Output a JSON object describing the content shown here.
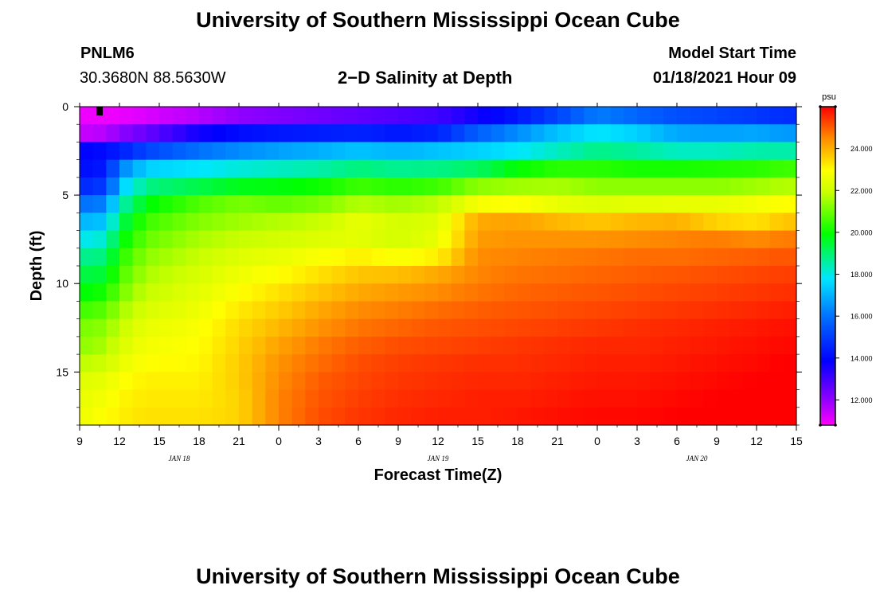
{
  "page": {
    "title_top": "University of Southern Mississippi Ocean Cube",
    "title_bottom": "University of Southern Mississippi Ocean Cube",
    "station_id": "PNLM6",
    "station_coords": "30.3680N 88.5630W",
    "chart_title": "2−D Salinity at Depth",
    "model_start_label": "Model Start Time",
    "model_start_value": "01/18/2021 Hour 09"
  },
  "colors": {
    "palette": [
      "#ff00ff",
      "#8c00ff",
      "#0000ff",
      "#00e6ff",
      "#00ff00",
      "#ffff00",
      "#ff8c00",
      "#ff0000"
    ],
    "marker": "#000000",
    "axis": "#000000"
  },
  "chart_data": {
    "type": "heatmap",
    "title": "2−D Salinity at Depth",
    "xlabel": "Forecast Time(Z)",
    "ylabel": "Depth (ft)",
    "x_range_hours": [
      0,
      54
    ],
    "x_ticks": [
      {
        "hour": 0,
        "label": "9"
      },
      {
        "hour": 3,
        "label": "12"
      },
      {
        "hour": 6,
        "label": "15"
      },
      {
        "hour": 9,
        "label": "18"
      },
      {
        "hour": 12,
        "label": "21"
      },
      {
        "hour": 15,
        "label": "0"
      },
      {
        "hour": 18,
        "label": "3"
      },
      {
        "hour": 21,
        "label": "6"
      },
      {
        "hour": 24,
        "label": "9"
      },
      {
        "hour": 27,
        "label": "12"
      },
      {
        "hour": 30,
        "label": "15"
      },
      {
        "hour": 33,
        "label": "18"
      },
      {
        "hour": 36,
        "label": "21"
      },
      {
        "hour": 39,
        "label": "0"
      },
      {
        "hour": 42,
        "label": "3"
      },
      {
        "hour": 45,
        "label": "6"
      },
      {
        "hour": 48,
        "label": "9"
      },
      {
        "hour": 51,
        "label": "12"
      },
      {
        "hour": 54,
        "label": "15"
      }
    ],
    "date_labels": [
      {
        "hour": 7.5,
        "label": "JAN 18"
      },
      {
        "hour": 27,
        "label": "JAN 19"
      },
      {
        "hour": 46.5,
        "label": "JAN 20"
      }
    ],
    "y_range_ft": [
      0,
      18
    ],
    "y_ticks": [
      {
        "depth": 0,
        "label": "0"
      },
      {
        "depth": 5,
        "label": "5"
      },
      {
        "depth": 10,
        "label": "10"
      },
      {
        "depth": 15,
        "label": "15"
      }
    ],
    "depth_levels": 18,
    "time_steps": 54,
    "colorbar": {
      "unit": "psu",
      "range": [
        10.8,
        26.0
      ],
      "ticks": [
        {
          "value": 12,
          "label": "12.000"
        },
        {
          "value": 14,
          "label": "14.000"
        },
        {
          "value": 16,
          "label": "16.000"
        },
        {
          "value": 18,
          "label": "18.000"
        },
        {
          "value": 20,
          "label": "20.000"
        },
        {
          "value": 22,
          "label": "22.000"
        },
        {
          "value": 24,
          "label": "24.000"
        }
      ]
    },
    "salinity_profiles_psu": [
      {
        "hour": 0,
        "values": [
          11.0,
          11.4,
          13.8,
          14.0,
          14.5,
          15.8,
          16.8,
          17.6,
          18.4,
          19.0,
          19.5,
          20.2,
          20.8,
          21.0,
          21.5,
          22.0,
          22.2,
          22.3
        ]
      },
      {
        "hour": 2,
        "values": [
          11.0,
          11.6,
          14.0,
          14.2,
          14.8,
          16.0,
          17.0,
          17.9,
          18.6,
          19.2,
          19.8,
          20.5,
          21.0,
          21.3,
          21.7,
          22.2,
          22.4,
          22.6
        ]
      },
      {
        "hour": 3,
        "values": [
          11.0,
          12.0,
          14.3,
          16.0,
          17.0,
          18.0,
          18.8,
          19.4,
          19.9,
          20.3,
          20.7,
          21.2,
          21.6,
          21.9,
          22.2,
          22.5,
          22.7,
          22.8
        ]
      },
      {
        "hour": 5,
        "values": [
          11.2,
          12.5,
          15.0,
          17.2,
          18.5,
          19.5,
          20.2,
          20.6,
          21.0,
          21.3,
          21.6,
          21.9,
          22.2,
          22.4,
          22.6,
          22.8,
          22.9,
          23.0
        ]
      },
      {
        "hour": 9,
        "values": [
          11.6,
          13.6,
          15.8,
          17.5,
          19.0,
          20.4,
          20.9,
          21.3,
          21.6,
          21.9,
          22.1,
          22.3,
          22.5,
          22.6,
          22.7,
          22.8,
          22.9,
          23.0
        ]
      },
      {
        "hour": 12,
        "values": [
          12.0,
          14.0,
          16.2,
          17.8,
          19.4,
          20.8,
          21.2,
          21.6,
          22.0,
          22.3,
          22.6,
          22.9,
          23.1,
          23.2,
          23.3,
          23.3,
          23.2,
          23.2
        ]
      },
      {
        "hour": 15,
        "values": [
          12.2,
          14.2,
          16.5,
          18.0,
          19.5,
          20.6,
          21.4,
          21.8,
          22.2,
          22.6,
          23.0,
          23.3,
          23.6,
          23.9,
          24.1,
          24.2,
          24.3,
          24.3
        ]
      },
      {
        "hour": 18,
        "values": [
          12.4,
          14.3,
          16.7,
          18.2,
          19.7,
          20.8,
          21.6,
          22.0,
          22.5,
          23.0,
          23.4,
          23.8,
          24.1,
          24.4,
          24.6,
          24.8,
          24.9,
          25.0
        ]
      },
      {
        "hour": 21,
        "values": [
          12.6,
          14.4,
          17.0,
          18.6,
          20.2,
          21.4,
          22.2,
          22.1,
          22.8,
          23.4,
          23.8,
          24.2,
          24.5,
          24.8,
          25.0,
          25.1,
          25.2,
          25.3
        ]
      },
      {
        "hour": 24,
        "values": [
          12.8,
          14.2,
          16.8,
          18.4,
          20.0,
          21.2,
          21.8,
          21.8,
          22.5,
          23.5,
          24.0,
          24.4,
          24.7,
          25.0,
          25.2,
          25.3,
          25.4,
          25.5
        ]
      },
      {
        "hour": 27,
        "values": [
          13.0,
          14.4,
          17.0,
          18.5,
          20.2,
          21.5,
          22.0,
          22.2,
          22.8,
          23.8,
          24.2,
          24.6,
          24.9,
          25.1,
          25.3,
          25.4,
          25.5,
          25.6
        ]
      },
      {
        "hour": 30,
        "values": [
          13.6,
          15.5,
          17.2,
          18.8,
          21.0,
          22.5,
          23.8,
          24.0,
          24.2,
          24.3,
          24.5,
          24.8,
          25.0,
          25.2,
          25.4,
          25.5,
          25.6,
          25.6
        ]
      },
      {
        "hour": 33,
        "values": [
          14.2,
          16.2,
          17.5,
          19.6,
          21.2,
          22.6,
          23.9,
          24.1,
          24.3,
          24.5,
          24.7,
          24.9,
          25.1,
          25.3,
          25.4,
          25.5,
          25.6,
          25.7
        ]
      },
      {
        "hour": 36,
        "values": [
          15.0,
          17.0,
          18.0,
          20.0,
          21.3,
          22.2,
          23.6,
          24.1,
          24.4,
          24.6,
          24.8,
          25.0,
          25.2,
          25.4,
          25.5,
          25.6,
          25.7,
          25.8
        ]
      },
      {
        "hour": 39,
        "values": [
          16.0,
          17.5,
          18.5,
          20.0,
          21.0,
          22.0,
          23.4,
          24.1,
          24.5,
          24.7,
          24.9,
          25.1,
          25.3,
          25.5,
          25.6,
          25.7,
          25.8,
          25.9
        ]
      },
      {
        "hour": 42,
        "values": [
          15.6,
          17.2,
          18.3,
          19.8,
          21.0,
          22.1,
          23.6,
          24.2,
          24.6,
          24.8,
          25.0,
          25.2,
          25.4,
          25.5,
          25.6,
          25.7,
          25.8,
          25.9
        ]
      },
      {
        "hour": 45,
        "values": [
          15.2,
          16.6,
          18.0,
          19.8,
          21.0,
          22.2,
          23.7,
          24.3,
          24.6,
          24.9,
          25.1,
          25.3,
          25.5,
          25.6,
          25.7,
          25.8,
          25.9,
          26.0
        ]
      },
      {
        "hour": 48,
        "values": [
          15.0,
          16.5,
          18.0,
          19.9,
          21.0,
          22.2,
          23.2,
          24.4,
          24.7,
          25.0,
          25.2,
          25.4,
          25.6,
          25.7,
          25.8,
          25.9,
          26.0,
          26.0
        ]
      },
      {
        "hour": 51,
        "values": [
          14.8,
          16.6,
          18.2,
          20.0,
          21.2,
          22.4,
          23.0,
          24.2,
          24.8,
          25.1,
          25.3,
          25.5,
          25.7,
          25.8,
          25.9,
          26.0,
          26.0,
          26.0
        ]
      },
      {
        "hour": 53,
        "values": [
          14.6,
          16.4,
          18.2,
          20.2,
          21.4,
          22.6,
          23.4,
          24.4,
          24.9,
          25.2,
          25.4,
          25.6,
          25.8,
          25.9,
          26.0,
          26.0,
          26.0,
          26.0
        ]
      }
    ],
    "marker": {
      "hour": 1.5,
      "depth_top": 0,
      "depth_bottom": 0.5
    }
  }
}
